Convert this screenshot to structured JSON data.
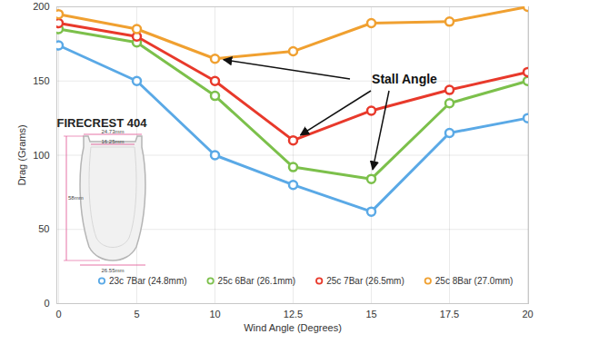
{
  "chart_data": {
    "type": "line",
    "x_label": "Wind Angle (Degrees)",
    "y_label": "Drag (Grams)",
    "categories": [
      "0",
      "5",
      "10",
      "12.5",
      "15",
      "17.5",
      "20"
    ],
    "ylim": [
      0,
      200
    ],
    "yticks": [
      0,
      50,
      100,
      150,
      200
    ],
    "grid": true,
    "marker": "circle",
    "legend": "bottom",
    "series": [
      {
        "name": "23c 7Bar (24.8mm)",
        "color": "#5aa9e6",
        "values": [
          174,
          150,
          100,
          80,
          62,
          115,
          125
        ]
      },
      {
        "name": "25c 6Bar (26.1mm)",
        "color": "#7cc04b",
        "values": [
          185,
          176,
          140,
          92,
          84,
          135,
          150
        ]
      },
      {
        "name": "25c 7Bar (26.5mm)",
        "color": "#e8392b",
        "values": [
          189,
          180,
          150,
          110,
          130,
          144,
          156
        ]
      },
      {
        "name": "25c 8Bar (27.0mm)",
        "color": "#f0a030",
        "values": [
          195,
          185,
          165,
          170,
          189,
          190,
          200
        ]
      }
    ],
    "annotations": [
      {
        "text": "Stall Angle",
        "points": [
          {
            "category": "10",
            "value": 165
          },
          {
            "category": "12.5",
            "value": 110
          },
          {
            "category": "15",
            "value": 84
          }
        ]
      }
    ],
    "inset": {
      "title": "FIRECREST 404",
      "labels": [
        "24.73mm",
        "16.25mm",
        "58mm",
        "26.55mm"
      ]
    }
  }
}
